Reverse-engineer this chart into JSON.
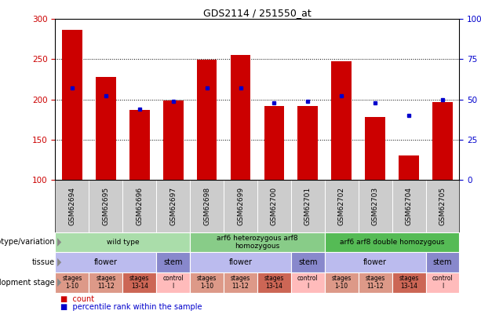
{
  "title": "GDS2114 / 251550_at",
  "samples": [
    "GSM62694",
    "GSM62695",
    "GSM62696",
    "GSM62697",
    "GSM62698",
    "GSM62699",
    "GSM62700",
    "GSM62701",
    "GSM62702",
    "GSM62703",
    "GSM62704",
    "GSM62705"
  ],
  "counts": [
    287,
    228,
    187,
    199,
    249,
    255,
    192,
    192,
    247,
    178,
    130,
    197
  ],
  "percentile_ranks": [
    57,
    52,
    44,
    49,
    57,
    57,
    48,
    49,
    52,
    48,
    40,
    50
  ],
  "ylim_left": [
    100,
    300
  ],
  "yticks_left": [
    100,
    150,
    200,
    250,
    300
  ],
  "ylim_right": [
    0,
    100
  ],
  "yticks_right": [
    0,
    25,
    50,
    75,
    100
  ],
  "bar_color": "#cc0000",
  "dot_color": "#0000cc",
  "genotype_groups": [
    {
      "label": "wild type",
      "start": 0,
      "end": 3,
      "color": "#aaddaa"
    },
    {
      "label": "arf6 heterozygous arf8\nhomozygous",
      "start": 4,
      "end": 7,
      "color": "#88cc88"
    },
    {
      "label": "arf6 arf8 double homozygous",
      "start": 8,
      "end": 11,
      "color": "#55bb55"
    }
  ],
  "tissue_groups": [
    {
      "label": "flower",
      "start": 0,
      "end": 2,
      "color": "#bbbbee"
    },
    {
      "label": "stem",
      "start": 3,
      "end": 3,
      "color": "#8888cc"
    },
    {
      "label": "flower",
      "start": 4,
      "end": 6,
      "color": "#bbbbee"
    },
    {
      "label": "stem",
      "start": 7,
      "end": 7,
      "color": "#8888cc"
    },
    {
      "label": "flower",
      "start": 8,
      "end": 10,
      "color": "#bbbbee"
    },
    {
      "label": "stem",
      "start": 11,
      "end": 11,
      "color": "#8888cc"
    }
  ],
  "dev_stage_groups": [
    {
      "label": "stages\n1-10",
      "start": 0,
      "end": 0,
      "color": "#dd9988"
    },
    {
      "label": "stages\n11-12",
      "start": 1,
      "end": 1,
      "color": "#dd9988"
    },
    {
      "label": "stages\n13-14",
      "start": 2,
      "end": 2,
      "color": "#cc6655"
    },
    {
      "label": "control\nl",
      "start": 3,
      "end": 3,
      "color": "#ffbbbb"
    },
    {
      "label": "stages\n1-10",
      "start": 4,
      "end": 4,
      "color": "#dd9988"
    },
    {
      "label": "stages\n11-12",
      "start": 5,
      "end": 5,
      "color": "#dd9988"
    },
    {
      "label": "stages\n13-14",
      "start": 6,
      "end": 6,
      "color": "#cc6655"
    },
    {
      "label": "control\nl",
      "start": 7,
      "end": 7,
      "color": "#ffbbbb"
    },
    {
      "label": "stages\n1-10",
      "start": 8,
      "end": 8,
      "color": "#dd9988"
    },
    {
      "label": "stages\n11-12",
      "start": 9,
      "end": 9,
      "color": "#dd9988"
    },
    {
      "label": "stages\n13-14",
      "start": 10,
      "end": 10,
      "color": "#cc6655"
    },
    {
      "label": "control\nl",
      "start": 11,
      "end": 11,
      "color": "#ffbbbb"
    }
  ],
  "row_labels": [
    "genotype/variation",
    "tissue",
    "development stage"
  ],
  "xticklabel_bg": "#cccccc",
  "legend_count_color": "#cc0000",
  "legend_pct_color": "#0000cc"
}
